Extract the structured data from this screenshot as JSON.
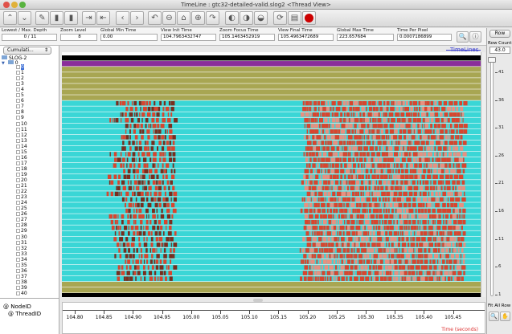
{
  "window": {
    "title": "TimeLine : gtc32-detailed-valid.slog2  <Thread View>"
  },
  "info": [
    {
      "label": "Lowest / Max. Depth",
      "value": "0 / 11"
    },
    {
      "label": "Zoom Level",
      "value": "8"
    },
    {
      "label": "Global Min Time",
      "value": "0.00"
    },
    {
      "label": "View Init Time",
      "value": "104.7963432747"
    },
    {
      "label": "Zoom Focus Time",
      "value": "105.1463452919"
    },
    {
      "label": "View Final Time",
      "value": "105.4963472689"
    },
    {
      "label": "Global Max Time",
      "value": "223.657684"
    },
    {
      "label": "Time Per Pixel",
      "value": "0.0007186899"
    }
  ],
  "sidebar": {
    "dropdown": "Cumulati...",
    "root": "SLOG-2",
    "node": "0",
    "threads": [
      "0",
      "1",
      "2",
      "3",
      "4",
      "5",
      "6",
      "7",
      "8",
      "9",
      "10",
      "11",
      "12",
      "13",
      "14",
      "15",
      "16",
      "17",
      "18",
      "19",
      "20",
      "21",
      "22",
      "23",
      "24",
      "25",
      "26",
      "27",
      "28",
      "29",
      "30",
      "31",
      "32",
      "33",
      "34",
      "35",
      "36",
      "37",
      "38",
      "39",
      "40"
    ]
  },
  "canvas": {
    "label": "TimeLines"
  },
  "bottom_left": {
    "line1": "@ NodeID",
    "line2": "@ ThreadID"
  },
  "axis": {
    "ticks": [
      "104.80",
      "104.85",
      "104.90",
      "104.95",
      "105.00",
      "105.05",
      "105.10",
      "105.15",
      "105.20",
      "105.25",
      "105.30",
      "105.35",
      "105.40",
      "105.45"
    ],
    "unit": "Time (seconds)"
  },
  "right": {
    "row_button": "Row",
    "row_count_label": "Row Count",
    "row_count": "43.0",
    "ruler": [
      "41",
      "36",
      "31",
      "26",
      "21",
      "16",
      "11",
      "6",
      "1"
    ],
    "fit_label": "Fit All Row"
  },
  "colors": {
    "cyan": "#3ad6d6",
    "olive": "#a8a652",
    "purple": "#8a2e9a",
    "red": "#d8452e",
    "black": "#000000",
    "accent": "#3b3fd0"
  }
}
